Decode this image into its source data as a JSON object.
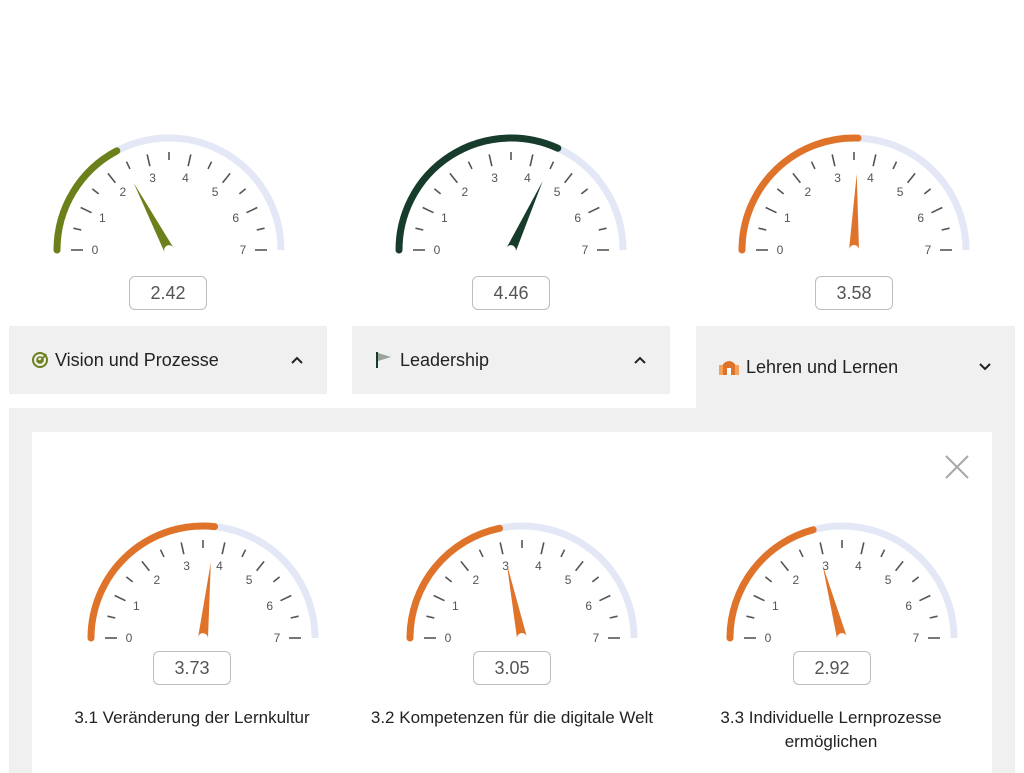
{
  "colors": {
    "vision": "#6b7f1a",
    "leadership": "#173c2b",
    "lehren": "#e0732a",
    "track": "#e4e8f6",
    "tick": "#555555",
    "tab_bg": "#f0f0f0"
  },
  "gauge_scale": {
    "min": 0,
    "max": 7,
    "labels": [
      "0",
      "1",
      "2",
      "3",
      "4",
      "5",
      "6",
      "7"
    ]
  },
  "top_gauges": [
    {
      "value": 2.42,
      "value_label": "2.42",
      "color": "#6b7f1a"
    },
    {
      "value": 4.46,
      "value_label": "4.46",
      "color": "#173c2b"
    },
    {
      "value": 3.58,
      "value_label": "3.58",
      "color": "#e0732a"
    }
  ],
  "tabs": [
    {
      "label": "Vision und Prozesse",
      "icon": "target-check-icon",
      "icon_color": "#6b7f1a",
      "state": "collapsed",
      "chevron": "chevron-up-icon"
    },
    {
      "label": "Leadership",
      "icon": "flag-icon",
      "icon_color": "#173c2b",
      "state": "collapsed",
      "chevron": "chevron-up-icon"
    },
    {
      "label": "Lehren und Lernen",
      "icon": "school-icon",
      "icon_color": "#e0732a",
      "state": "expanded",
      "chevron": "chevron-down-icon"
    }
  ],
  "detail_panel": {
    "close_icon": "close-icon",
    "gauges": [
      {
        "value": 3.73,
        "value_label": "3.73",
        "color": "#e0732a",
        "label": "3.1 Veränderung der Lernkultur"
      },
      {
        "value": 3.05,
        "value_label": "3.05",
        "color": "#e0732a",
        "label": "3.2 Kompetenzen für die digitale Welt"
      },
      {
        "value": 2.92,
        "value_label": "2.92",
        "color": "#e0732a",
        "label": "3.3 Individuelle Lernprozesse ermöglichen"
      }
    ]
  }
}
